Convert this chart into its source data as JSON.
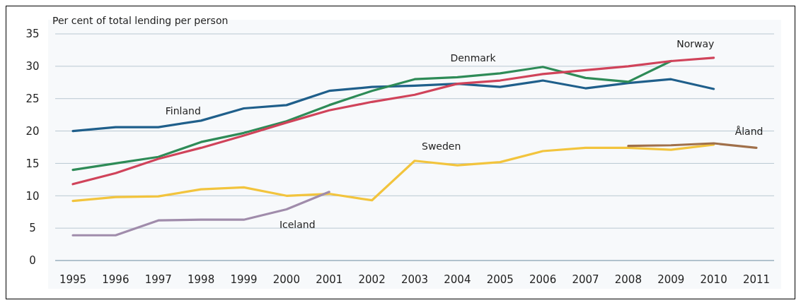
{
  "chart_data": {
    "type": "line",
    "ylabel": "Per cent of total lending per person",
    "categories": [
      "1995",
      "1996",
      "1997",
      "1998",
      "1999",
      "2000",
      "2001",
      "2002",
      "2003",
      "2004",
      "2005",
      "2006",
      "2007",
      "2008",
      "2009",
      "2010",
      "2011"
    ],
    "ylim": [
      0,
      35
    ],
    "yticks": [
      0,
      5,
      10,
      15,
      20,
      25,
      30,
      35
    ],
    "grid": "y",
    "series": [
      {
        "name": "Finland",
        "color": "#1f5f8b",
        "values": [
          20,
          20.6,
          20.6,
          21.6,
          23.5,
          24,
          26.2,
          26.8,
          27,
          27.3,
          26.8,
          27.8,
          26.6,
          27.4,
          28,
          26.5,
          null
        ]
      },
      {
        "name": "Denmark",
        "color": "#2e8b57",
        "values": [
          14,
          15,
          16,
          18.3,
          19.7,
          21.5,
          24,
          26.2,
          28,
          28.3,
          28.9,
          29.9,
          28.2,
          27.6,
          30.8,
          null,
          null
        ]
      },
      {
        "name": "Norway",
        "color": "#d0435a",
        "values": [
          11.8,
          13.5,
          15.7,
          17.4,
          19.3,
          21.3,
          23.2,
          24.5,
          25.6,
          27.3,
          27.8,
          28.8,
          29.4,
          30,
          30.8,
          31.3,
          null
        ]
      },
      {
        "name": "Sweden",
        "color": "#f2c43d",
        "values": [
          9.2,
          9.8,
          9.9,
          11,
          11.3,
          10,
          10.3,
          9.3,
          15.4,
          14.7,
          15.2,
          16.9,
          17.4,
          17.4,
          17.1,
          17.9,
          null
        ]
      },
      {
        "name": "Iceland",
        "color": "#a08cab",
        "values": [
          3.9,
          3.9,
          6.2,
          6.3,
          6.3,
          7.9,
          10.6,
          null,
          null,
          null,
          null,
          null,
          null,
          null,
          null,
          null,
          null
        ]
      },
      {
        "name": "Åland",
        "color": "#a0704a",
        "values": [
          null,
          null,
          null,
          null,
          null,
          null,
          null,
          null,
          null,
          null,
          null,
          null,
          null,
          17.7,
          17.8,
          18.1,
          17.4
        ]
      }
    ]
  }
}
